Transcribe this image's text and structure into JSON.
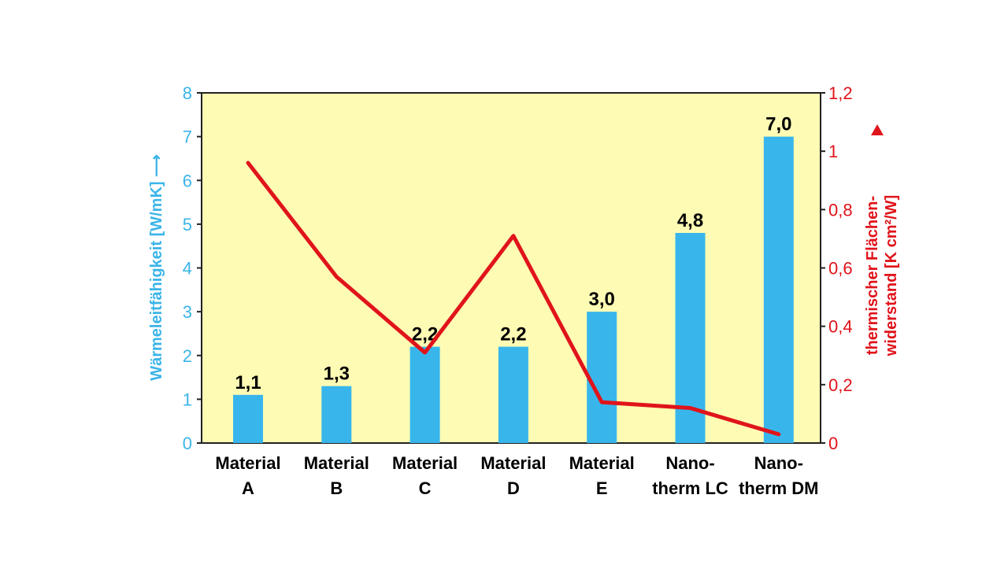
{
  "chart_data": {
    "type": "bar",
    "categories": [
      [
        "Material",
        "A"
      ],
      [
        "Material",
        "B"
      ],
      [
        "Material",
        "C"
      ],
      [
        "Material",
        "D"
      ],
      [
        "Material",
        "E"
      ],
      [
        "Nano-",
        "therm LC"
      ],
      [
        "Nano-",
        "therm DM"
      ]
    ],
    "series": [
      {
        "type": "bar",
        "axis": "left",
        "color": "#38b6ec",
        "values": [
          1.1,
          1.3,
          2.2,
          2.2,
          3.0,
          4.8,
          7.0
        ],
        "data_labels": [
          "1,1",
          "1,3",
          "2,2",
          "2,2",
          "3,0",
          "4,8",
          "7,0"
        ]
      },
      {
        "type": "line",
        "axis": "right",
        "color": "#e0141b",
        "values": [
          0.96,
          0.57,
          0.31,
          0.71,
          0.14,
          0.12,
          0.03
        ]
      }
    ],
    "y_left": {
      "label": "Wärmeleitfähigkeit [W/mK] ⟶",
      "range": [
        0,
        8
      ],
      "ticks": [
        "0",
        "1",
        "2",
        "3",
        "4",
        "5",
        "6",
        "7",
        "8"
      ],
      "color": "#3bb4e8"
    },
    "y_right": {
      "label_line1": "thermischer Flächen-",
      "label_line2": "widerstand [K cm²/W]",
      "range": [
        0,
        1.2
      ],
      "ticks": [
        "0",
        "0,2",
        "0,4",
        "0,6",
        "0,8",
        "1",
        "1,2"
      ],
      "color": "#e0141b"
    },
    "plot_background": "#fefbb4",
    "grid": false,
    "legend": "none"
  }
}
